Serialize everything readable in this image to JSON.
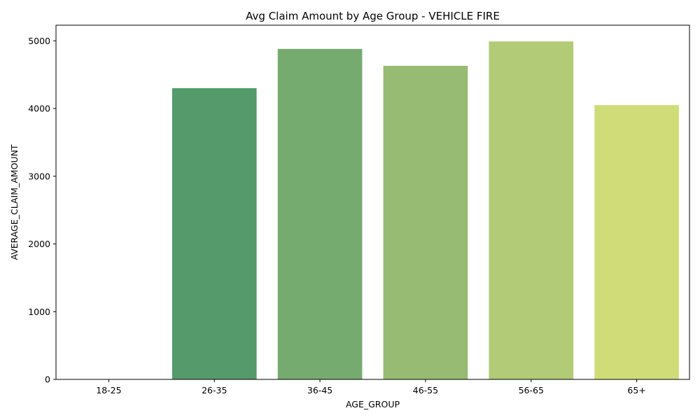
{
  "chart_data": {
    "type": "bar",
    "title": "Avg Claim Amount by Age Group - VEHICLE FIRE",
    "xlabel": "AGE_GROUP",
    "ylabel": "AVERAGE_CLAIM_AMOUNT",
    "categories": [
      "18-25",
      "26-35",
      "36-45",
      "46-55",
      "56-65",
      "65+"
    ],
    "values": [
      0,
      4300,
      4880,
      4630,
      4990,
      4050
    ],
    "colors": [
      "#2e8b57",
      "#549a6b",
      "#76ab6f",
      "#97bb72",
      "#b2cb76",
      "#d0dc77"
    ],
    "ylim": [
      0,
      5230
    ],
    "yticks": [
      0,
      1000,
      2000,
      3000,
      4000,
      5000
    ],
    "grid": false,
    "legend": "none"
  }
}
